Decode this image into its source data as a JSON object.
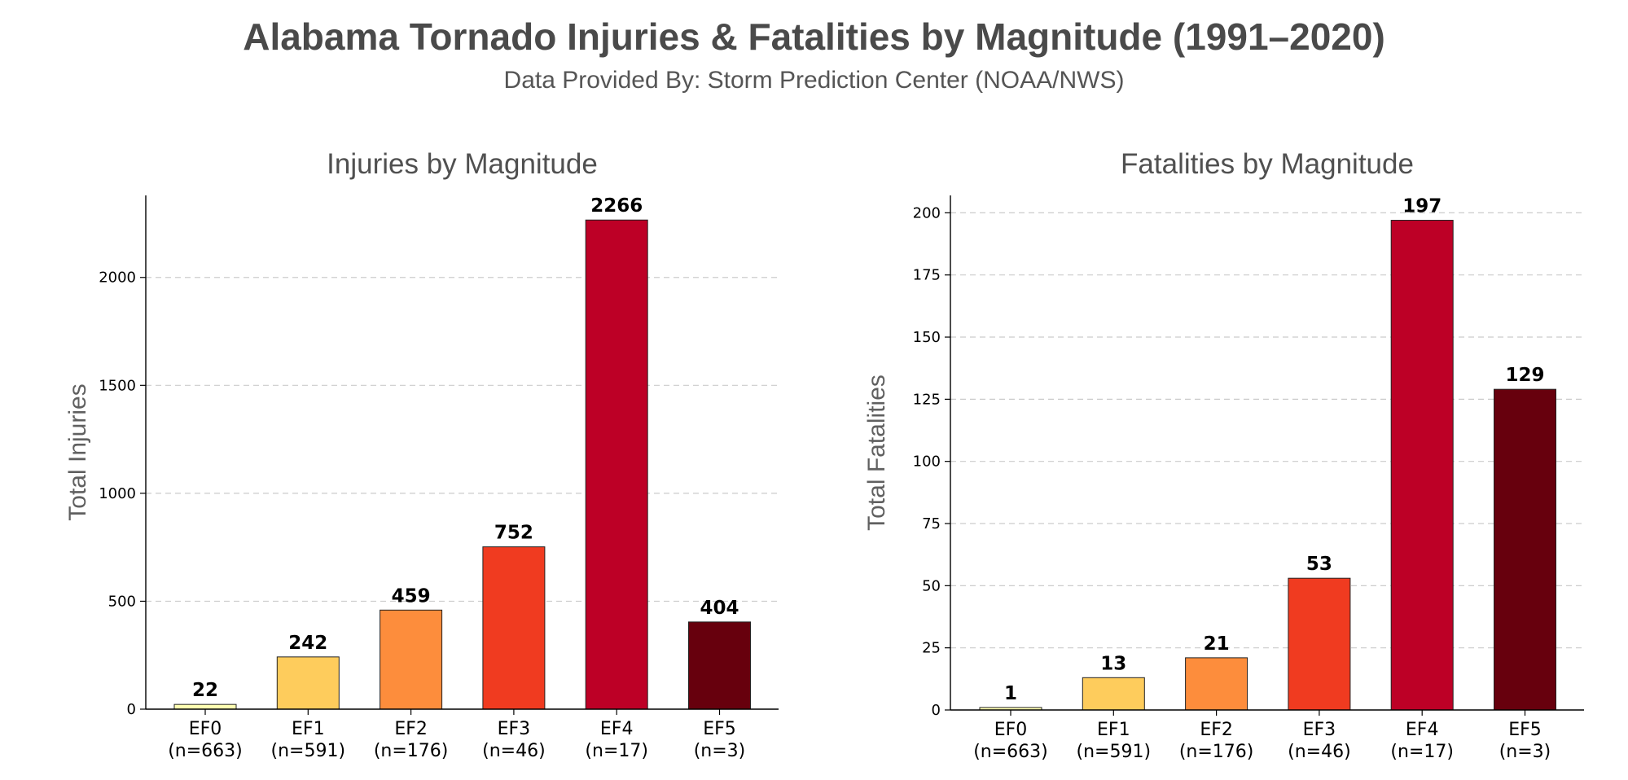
{
  "title": "Alabama Tornado Injuries & Fatalities by Magnitude (1991–2020)",
  "subtitle": "Data Provided By: Storm Prediction Center (NOAA/NWS)",
  "chart_data": [
    {
      "type": "bar",
      "title": "Injuries by Magnitude",
      "xlabel": "",
      "ylabel": "Total Injuries",
      "categories": [
        "EF0",
        "EF1",
        "EF2",
        "EF3",
        "EF4",
        "EF5"
      ],
      "counts": [
        "(n=663)",
        "(n=591)",
        "(n=176)",
        "(n=46)",
        "(n=17)",
        "(n=3)"
      ],
      "values": [
        22,
        242,
        459,
        752,
        2266,
        404
      ],
      "colors": [
        "#ffffb2",
        "#fecc5c",
        "#fd8d3c",
        "#f03b20",
        "#bd0026",
        "#67000d"
      ],
      "ylim": [
        0,
        2380
      ],
      "yticks": [
        0,
        500,
        1000,
        1500,
        2000
      ],
      "grid": "horizontal-dashed"
    },
    {
      "type": "bar",
      "title": "Fatalities by Magnitude",
      "xlabel": "",
      "ylabel": "Total Fatalities",
      "categories": [
        "EF0",
        "EF1",
        "EF2",
        "EF3",
        "EF4",
        "EF5"
      ],
      "counts": [
        "(n=663)",
        "(n=591)",
        "(n=176)",
        "(n=46)",
        "(n=17)",
        "(n=3)"
      ],
      "values": [
        1,
        13,
        21,
        53,
        197,
        129
      ],
      "colors": [
        "#ffffb2",
        "#fecc5c",
        "#fd8d3c",
        "#f03b20",
        "#bd0026",
        "#67000d"
      ],
      "ylim": [
        0,
        207
      ],
      "yticks": [
        0,
        25,
        50,
        75,
        100,
        125,
        150,
        175,
        200
      ],
      "grid": "horizontal-dashed"
    }
  ]
}
